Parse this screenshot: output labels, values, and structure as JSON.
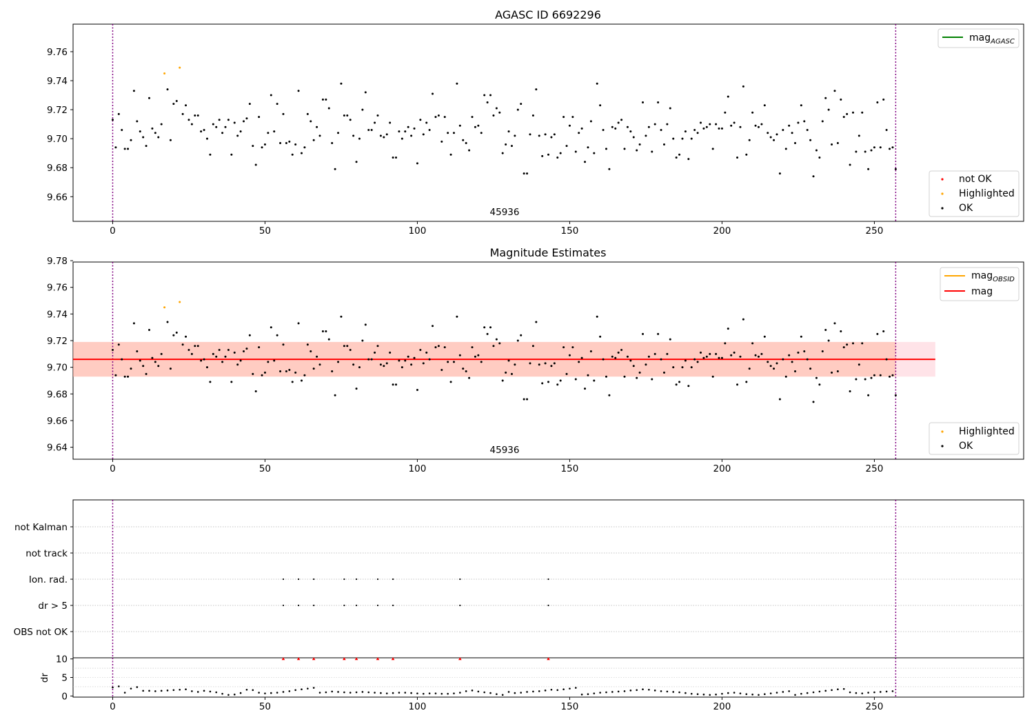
{
  "figure": {
    "top_title": "AGASC ID 6692296",
    "middle_title": "Magnitude Estimates",
    "obsid_annotation": "45936"
  },
  "legends": {
    "agasc_line": "mag",
    "agasc_line_sub": "AGASC",
    "obsid_line": "mag",
    "obsid_line_sub": "OBSID",
    "mag_line": "mag",
    "not_ok": "not OK",
    "highlighted": "Highlighted",
    "ok": "OK"
  },
  "colors": {
    "ok": "#000000",
    "highlighted": "#ffa500",
    "not_ok": "#ff0000",
    "agasc_line": "#008000",
    "mag_line": "#ff0000",
    "obsid_line": "#ffa500",
    "band_outer": "#ffc0cb",
    "band_inner": "#ffa07a",
    "boundary": "#800080"
  },
  "chart_data": [
    {
      "type": "scatter",
      "title": "AGASC ID 6692296",
      "xlabel": "",
      "ylabel": "",
      "xlim": [
        -13,
        299
      ],
      "ylim": [
        9.643,
        9.779
      ],
      "xticks": [
        0,
        50,
        100,
        150,
        200,
        250
      ],
      "yticks": [
        9.66,
        9.68,
        9.7,
        9.72,
        9.74,
        9.76
      ],
      "vlines": [
        0,
        257
      ],
      "annotation": {
        "text": "45936",
        "x": 128.5,
        "y": 9.646
      },
      "legend_upper": [
        "mag_AGASC"
      ],
      "legend_lower": [
        "not OK",
        "Highlighted",
        "OK"
      ],
      "series": [
        {
          "name": "OK",
          "style": "ok"
        },
        {
          "name": "Highlighted",
          "style": "highlighted",
          "x": [
            17,
            22
          ],
          "y": [
            9.745,
            9.749
          ]
        },
        {
          "name": "not OK",
          "style": "not_ok",
          "x": [],
          "y": []
        }
      ]
    },
    {
      "type": "scatter",
      "title": "Magnitude Estimates",
      "xlim": [
        -13,
        299
      ],
      "ylim": [
        9.631,
        9.779
      ],
      "xticks": [
        0,
        50,
        100,
        150,
        200,
        250
      ],
      "yticks": [
        9.64,
        9.66,
        9.68,
        9.7,
        9.72,
        9.74,
        9.76,
        9.78
      ],
      "vlines": [
        0,
        257
      ],
      "mag": 9.706,
      "band": [
        9.693,
        9.719
      ],
      "band_xrange": [
        -13,
        270
      ],
      "annotation": {
        "text": "45936",
        "x": 128.5,
        "y": 9.634
      },
      "legend_upper": [
        "mag_OBSID",
        "mag"
      ],
      "legend_lower": [
        "Highlighted",
        "OK"
      ],
      "series": [
        {
          "name": "OK",
          "style": "ok"
        },
        {
          "name": "Highlighted",
          "style": "highlighted",
          "x": [
            17,
            22
          ],
          "y": [
            9.745,
            9.749
          ]
        }
      ]
    },
    {
      "type": "scatter",
      "title": "",
      "xlim": [
        -13,
        299
      ],
      "categories": [
        "OBS not OK",
        "dr > 5",
        "Ion. rad.",
        "not track",
        "not Kalman"
      ],
      "flag_x": [
        56,
        61,
        66,
        76,
        80,
        87,
        92,
        114,
        143
      ],
      "flag_rows": [
        "dr > 5",
        "Ion. rad."
      ],
      "vlines": [
        0,
        257
      ]
    },
    {
      "type": "scatter",
      "title": "",
      "ylabel": "dr",
      "xlim": [
        -13,
        299
      ],
      "ylim": [
        -0.3,
        10.3
      ],
      "xticks": [
        0,
        50,
        100,
        150,
        200,
        250
      ],
      "yticks": [
        0,
        5,
        10
      ],
      "vlines": [
        0,
        257
      ],
      "outliers_x": [
        56,
        61,
        66,
        76,
        80,
        87,
        92,
        114,
        143
      ],
      "outliers_y": 10,
      "x": [
        0,
        2,
        4,
        6,
        8,
        10,
        12,
        14,
        16,
        18,
        20,
        22,
        24,
        26,
        28,
        30,
        32,
        34,
        36,
        38,
        40,
        42,
        44,
        46,
        48,
        50,
        52,
        54,
        56,
        58,
        60,
        62,
        64,
        66,
        68,
        70,
        72,
        74,
        76,
        78,
        80,
        82,
        84,
        86,
        88,
        90,
        92,
        94,
        96,
        98,
        100,
        102,
        104,
        106,
        108,
        110,
        112,
        114,
        116,
        118,
        120,
        122,
        124,
        126,
        128,
        130,
        132,
        134,
        136,
        138,
        140,
        142,
        144,
        146,
        148,
        150,
        152,
        154,
        156,
        158,
        160,
        162,
        164,
        166,
        168,
        170,
        172,
        174,
        176,
        178,
        180,
        182,
        184,
        186,
        188,
        190,
        192,
        194,
        196,
        198,
        200,
        202,
        204,
        206,
        208,
        210,
        212,
        214,
        216,
        218,
        220,
        222,
        224,
        226,
        228,
        230,
        232,
        234,
        236,
        238,
        240,
        242,
        244,
        246,
        248,
        250,
        252,
        254,
        256
      ],
      "y": [
        2.3,
        2.6,
        0.9,
        2.0,
        2.4,
        1.4,
        1.4,
        1.3,
        1.4,
        1.5,
        1.6,
        1.7,
        1.8,
        1.3,
        1.1,
        1.4,
        1.2,
        1.0,
        0.6,
        0.3,
        0.4,
        0.8,
        1.7,
        1.6,
        0.9,
        0.7,
        0.8,
        0.9,
        1.1,
        1.3,
        1.6,
        1.8,
        2.0,
        2.2,
        0.9,
        1.0,
        1.2,
        1.1,
        1.0,
        0.9,
        1.0,
        1.1,
        1.0,
        0.9,
        0.8,
        0.7,
        0.8,
        0.9,
        0.9,
        0.8,
        0.7,
        0.6,
        0.7,
        0.7,
        0.6,
        0.6,
        0.7,
        0.9,
        1.3,
        1.5,
        1.2,
        1.0,
        0.8,
        0.5,
        0.3,
        1.1,
        0.8,
        0.9,
        1.1,
        1.2,
        1.3,
        1.5,
        1.7,
        1.6,
        1.8,
        2.0,
        2.2,
        0.4,
        0.5,
        0.7,
        0.9,
        1.0,
        1.1,
        1.2,
        1.3,
        1.5,
        1.6,
        1.8,
        1.7,
        1.5,
        1.3,
        1.2,
        1.1,
        1.0,
        0.8,
        0.6,
        0.5,
        0.4,
        0.3,
        0.4,
        0.6,
        0.8,
        0.9,
        0.7,
        0.5,
        0.4,
        0.3,
        0.5,
        0.7,
        0.9,
        1.1,
        1.3,
        0.3,
        0.6,
        0.8,
        1.0,
        1.2,
        1.4,
        1.6,
        1.8,
        1.9,
        1.0,
        0.8,
        0.7,
        0.9,
        1.0,
        1.1,
        1.2,
        1.3
      ]
    }
  ]
}
